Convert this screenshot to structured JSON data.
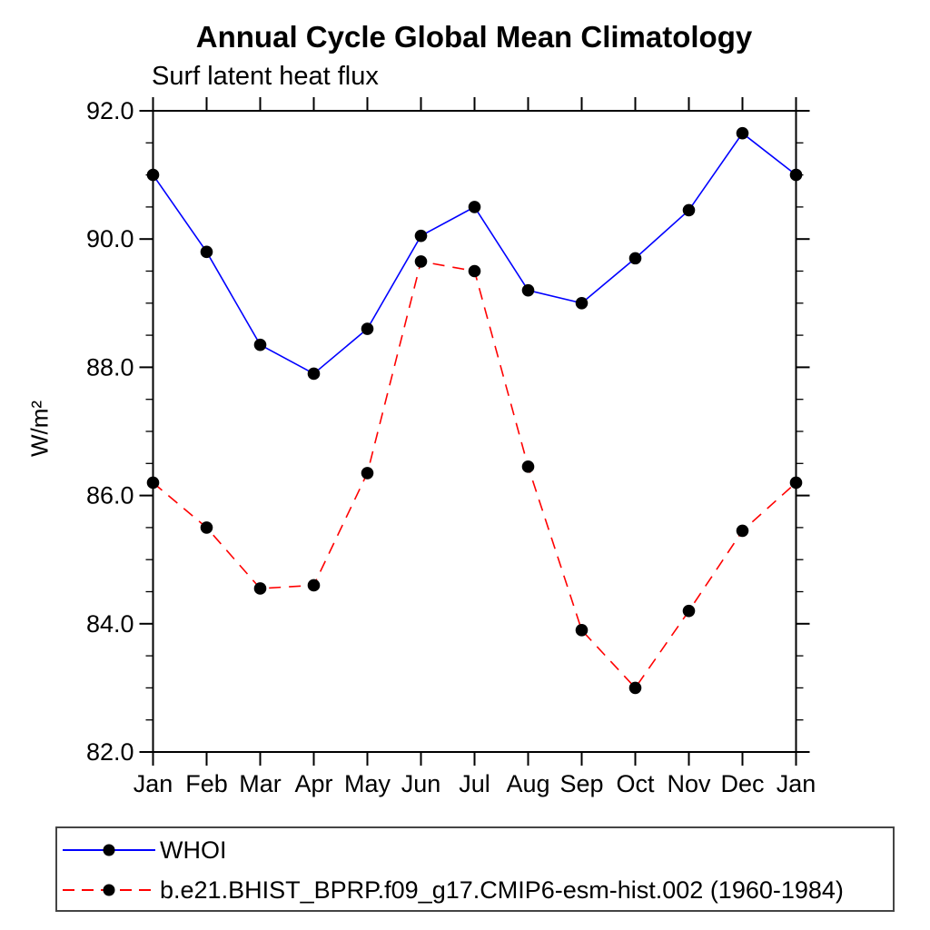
{
  "chart_data": {
    "type": "line",
    "title": "Annual Cycle Global Mean Climatology",
    "subtitle": "Surf latent heat flux",
    "ylabel": "W/m²",
    "xlabel": "",
    "categories": [
      "Jan",
      "Feb",
      "Mar",
      "Apr",
      "May",
      "Jun",
      "Jul",
      "Aug",
      "Sep",
      "Oct",
      "Nov",
      "Dec",
      "Jan"
    ],
    "ylim": [
      82.0,
      92.0
    ],
    "ytick_interval": 2.0,
    "ytick_minor_interval": 0.5,
    "ytick_labels": [
      "82.0",
      "84.0",
      "86.0",
      "88.0",
      "90.0",
      "92.0"
    ],
    "grid": false,
    "legend_position": "bottom-left-box",
    "marker_color": "#000000",
    "series": [
      {
        "name": "WHOI",
        "color": "#0000ff",
        "style": "solid",
        "marker": "circle",
        "values": [
          91.0,
          89.8,
          88.35,
          87.9,
          88.6,
          90.05,
          90.5,
          89.2,
          89.0,
          89.7,
          90.45,
          91.65,
          91.0
        ]
      },
      {
        "name": "b.e21.BHIST_BPRP.f09_g17.CMIP6-esm-hist.002 (1960-1984)",
        "color": "#ff0000",
        "style": "dashed",
        "marker": "circle",
        "values": [
          86.2,
          85.5,
          84.55,
          84.6,
          86.35,
          89.65,
          89.5,
          86.45,
          83.9,
          83.0,
          84.2,
          85.45,
          86.2
        ]
      }
    ]
  }
}
